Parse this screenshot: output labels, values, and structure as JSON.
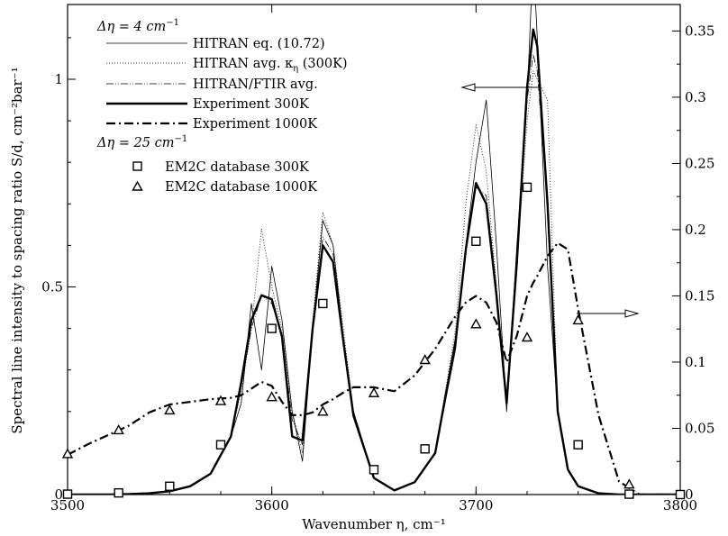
{
  "chart_data": {
    "type": "line",
    "x": [
      3500,
      3510,
      3520,
      3530,
      3540,
      3550,
      3560,
      3570,
      3580,
      3585,
      3590,
      3595,
      3600,
      3605,
      3610,
      3615,
      3620,
      3625,
      3630,
      3635,
      3640,
      3650,
      3660,
      3670,
      3680,
      3690,
      3695,
      3700,
      3705,
      3710,
      3715,
      3720,
      3725,
      3728,
      3730,
      3735,
      3740,
      3745,
      3750,
      3760,
      3770,
      3780,
      3800
    ],
    "xlabel": "Wavenumber η, cm⁻¹",
    "ylabel_left": "Spectral line intensity to spacing ratio S/d, cm⁻²bar⁻¹",
    "xlim": [
      3500,
      3800
    ],
    "ylim_left": [
      0,
      1.18
    ],
    "ylim_right": [
      0,
      0.37
    ],
    "x_ticks": [
      "3500",
      "3600",
      "3700",
      "3800"
    ],
    "y_ticks_left": [
      "0",
      "0.5",
      "1"
    ],
    "y_ticks_right": [
      "0",
      "0.05",
      "0.1",
      "0.15",
      "0.2",
      "0.25",
      "0.3",
      "0.35"
    ],
    "legend": {
      "group1_header_prefix": "Δη = 4 cm",
      "group1_header_sup": "−1",
      "group2_header_prefix": "Δη = 25 cm",
      "group2_header_sup": "−1",
      "hitran_avg_label_prefix": "HITRAN avg. κ",
      "hitran_avg_label_sub": "η",
      "hitran_avg_label_suffix": " (300K)"
    },
    "series": [
      {
        "name": "HITRAN eq. (10.72)",
        "axis": "left",
        "style": "thin",
        "color": "#000000",
        "y": [
          0,
          0,
          0,
          0.001,
          0.003,
          0.008,
          0.02,
          0.05,
          0.14,
          0.22,
          0.46,
          0.3,
          0.55,
          0.42,
          0.2,
          0.08,
          0.4,
          0.66,
          0.6,
          0.38,
          0.2,
          0.04,
          0.01,
          0.03,
          0.1,
          0.35,
          0.6,
          0.8,
          0.95,
          0.6,
          0.2,
          0.6,
          0.95,
          1.3,
          1.1,
          0.55,
          0.2,
          0.06,
          0.02,
          0.003,
          0,
          0,
          0
        ]
      },
      {
        "name": "HITRAN avg. κη (300K)",
        "axis": "left",
        "style": "dotted",
        "color": "#000000",
        "y": [
          0,
          0,
          0,
          0.001,
          0.003,
          0.008,
          0.02,
          0.05,
          0.14,
          0.25,
          0.4,
          0.64,
          0.5,
          0.4,
          0.2,
          0.1,
          0.42,
          0.68,
          0.6,
          0.4,
          0.2,
          0.04,
          0.01,
          0.03,
          0.1,
          0.4,
          0.7,
          0.89,
          0.78,
          0.5,
          0.22,
          0.55,
          0.9,
          1.02,
          1.0,
          0.95,
          0.2,
          0.06,
          0.02,
          0.003,
          0,
          0,
          0
        ]
      },
      {
        "name": "HITRAN/FTIR avg.",
        "axis": "left",
        "style": "dashdotdot",
        "color": "#000000",
        "y": [
          0,
          0,
          0,
          0.001,
          0.003,
          0.008,
          0.02,
          0.05,
          0.14,
          0.26,
          0.4,
          0.48,
          0.46,
          0.38,
          0.18,
          0.12,
          0.4,
          0.62,
          0.58,
          0.38,
          0.2,
          0.04,
          0.01,
          0.03,
          0.1,
          0.38,
          0.6,
          0.74,
          0.72,
          0.5,
          0.22,
          0.55,
          0.95,
          1.06,
          1.02,
          0.7,
          0.2,
          0.06,
          0.02,
          0.003,
          0,
          0,
          0
        ]
      },
      {
        "name": "Experiment 300K",
        "axis": "left",
        "style": "thick",
        "color": "#000000",
        "y": [
          0,
          0,
          0,
          0.001,
          0.003,
          0.008,
          0.02,
          0.05,
          0.14,
          0.27,
          0.42,
          0.48,
          0.47,
          0.38,
          0.14,
          0.13,
          0.4,
          0.6,
          0.56,
          0.37,
          0.19,
          0.04,
          0.01,
          0.03,
          0.1,
          0.37,
          0.59,
          0.75,
          0.7,
          0.48,
          0.22,
          0.56,
          0.98,
          1.12,
          1.08,
          0.7,
          0.2,
          0.06,
          0.02,
          0.003,
          0,
          0,
          0
        ]
      },
      {
        "name": "Experiment 1000K",
        "axis": "right",
        "style": "dashdot",
        "color": "#000000",
        "y": [
          0.03,
          0.038,
          0.045,
          0.052,
          0.062,
          0.068,
          0.07,
          0.072,
          0.073,
          0.075,
          0.08,
          0.085,
          0.082,
          0.07,
          0.06,
          0.06,
          0.062,
          0.068,
          0.072,
          0.077,
          0.081,
          0.081,
          0.078,
          0.09,
          0.11,
          0.135,
          0.145,
          0.15,
          0.145,
          0.13,
          0.1,
          0.12,
          0.15,
          0.16,
          0.165,
          0.18,
          0.19,
          0.185,
          0.14,
          0.06,
          0.01,
          0,
          0
        ]
      }
    ],
    "markers": [
      {
        "name": "EM2C database 300K",
        "axis": "left",
        "shape": "square",
        "x": [
          3500,
          3525,
          3550,
          3575,
          3600,
          3625,
          3650,
          3675,
          3700,
          3725,
          3750,
          3775,
          3800
        ],
        "y": [
          0.001,
          0.004,
          0.02,
          0.12,
          0.4,
          0.46,
          0.06,
          0.11,
          0.61,
          0.74,
          0.12,
          0.001,
          0
        ]
      },
      {
        "name": "EM2C database 1000K",
        "axis": "right",
        "shape": "triangle",
        "x": [
          3500,
          3525,
          3550,
          3575,
          3600,
          3625,
          3650,
          3675,
          3700,
          3725,
          3750,
          3775
        ],
        "y": [
          0.03,
          0.048,
          0.063,
          0.07,
          0.073,
          0.062,
          0.076,
          0.101,
          0.128,
          0.118,
          0.131,
          0.007
        ]
      }
    ],
    "annotations": [
      {
        "type": "arrow",
        "direction": "left",
        "label": "",
        "points_to": "left axis"
      },
      {
        "type": "arrow",
        "direction": "right",
        "label": "",
        "points_to": "right axis"
      }
    ]
  }
}
